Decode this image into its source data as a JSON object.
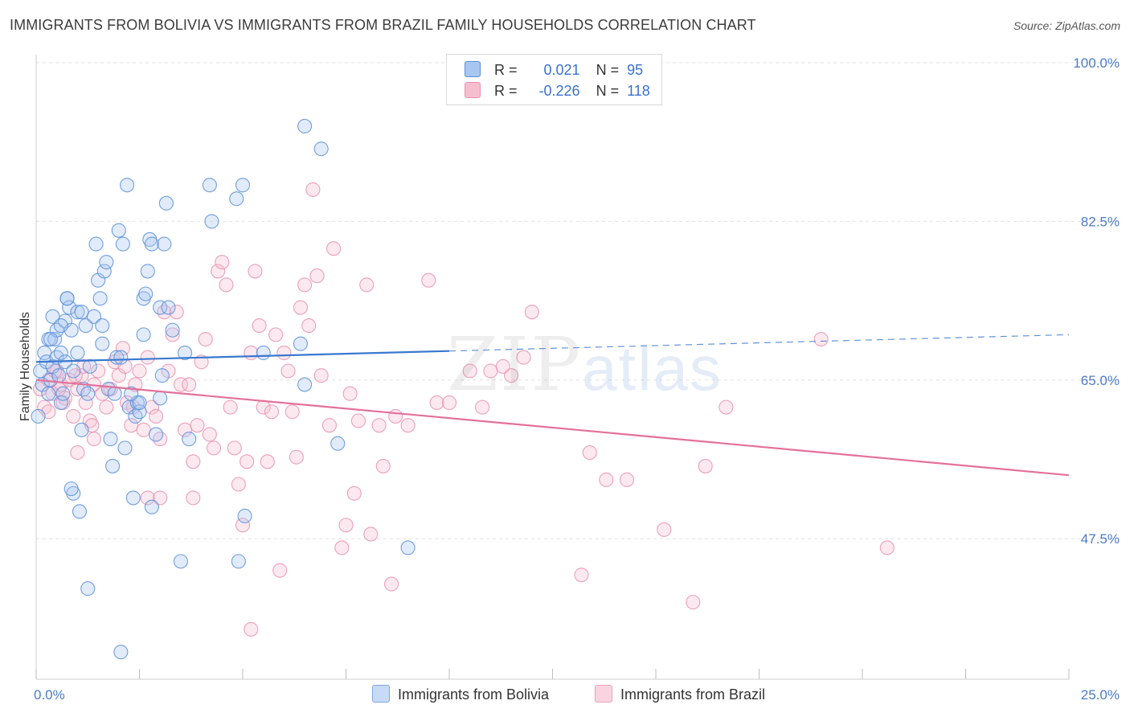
{
  "header": {
    "title": "IMMIGRANTS FROM BOLIVIA VS IMMIGRANTS FROM BRAZIL FAMILY HOUSEHOLDS CORRELATION CHART",
    "source": "Source: ZipAtlas.com"
  },
  "watermark": {
    "zip": "ZIP",
    "atlas": "atlas"
  },
  "legend": {
    "rows": [
      {
        "r_label": "R =",
        "r_value": "0.021",
        "n_label": "N =",
        "n_value": "95"
      },
      {
        "r_label": "R =",
        "r_value": "-0.226",
        "n_label": "N =",
        "n_value": "118"
      }
    ]
  },
  "bottom_legend": {
    "bolivia": "Immigrants from Bolivia",
    "brazil": "Immigrants from Brazil"
  },
  "colors": {
    "bolivia_fill": "#a9c6f0",
    "bolivia_stroke": "#5a8fd8",
    "bolivia_line": "#3a78d0",
    "brazil_fill": "#f6bfd0",
    "brazil_stroke": "#e890ae",
    "brazil_line": "#e4709a",
    "tick_text": "#4a7cc9",
    "grid": "#e2e2e2"
  },
  "chart_data": {
    "type": "scatter",
    "title": "IMMIGRANTS FROM BOLIVIA VS IMMIGRANTS FROM BRAZIL FAMILY HOUSEHOLDS CORRELATION CHART",
    "xlabel": "",
    "ylabel": "Family Households",
    "xlim": [
      0,
      25
    ],
    "ylim": [
      32,
      100
    ],
    "x_tick_labels": [
      "0.0%",
      "25.0%"
    ],
    "y_ticks": [
      47.5,
      65.0,
      82.5,
      100.0
    ],
    "y_tick_labels": [
      "47.5%",
      "65.0%",
      "82.5%",
      "100.0%"
    ],
    "grid": true,
    "legend_placement": "top-center",
    "series": [
      {
        "name": "Immigrants from Bolivia",
        "r": 0.021,
        "n": 95,
        "trend": {
          "x0": 0.0,
          "y0": 67.0,
          "x1": 25.0,
          "y1": 70.0,
          "solid_until": 10.0
        },
        "points": [
          [
            0.05,
            61.0
          ],
          [
            0.1,
            66.0
          ],
          [
            0.15,
            64.5
          ],
          [
            0.2,
            68.0
          ],
          [
            0.25,
            67.0
          ],
          [
            0.3,
            69.5
          ],
          [
            0.3,
            63.5
          ],
          [
            0.35,
            65.0
          ],
          [
            0.4,
            72.0
          ],
          [
            0.4,
            66.5
          ],
          [
            0.45,
            69.5
          ],
          [
            0.5,
            70.5
          ],
          [
            0.5,
            67.5
          ],
          [
            0.55,
            65.5
          ],
          [
            0.6,
            68.0
          ],
          [
            0.6,
            62.5
          ],
          [
            0.65,
            63.5
          ],
          [
            0.7,
            71.5
          ],
          [
            0.7,
            67.0
          ],
          [
            0.75,
            74.0
          ],
          [
            0.8,
            73.0
          ],
          [
            0.85,
            70.5
          ],
          [
            0.9,
            66.0
          ],
          [
            0.9,
            52.5
          ],
          [
            1.0,
            72.5
          ],
          [
            1.0,
            68.0
          ],
          [
            1.05,
            50.5
          ],
          [
            1.1,
            59.5
          ],
          [
            1.15,
            64.0
          ],
          [
            1.2,
            71.0
          ],
          [
            1.25,
            63.5
          ],
          [
            1.3,
            66.5
          ],
          [
            1.4,
            72.0
          ],
          [
            1.45,
            80.0
          ],
          [
            1.5,
            76.0
          ],
          [
            1.55,
            74.0
          ],
          [
            1.6,
            71.0
          ],
          [
            1.6,
            69.0
          ],
          [
            1.65,
            77.0
          ],
          [
            1.7,
            78.0
          ],
          [
            1.75,
            64.0
          ],
          [
            1.8,
            58.5
          ],
          [
            1.85,
            55.5
          ],
          [
            1.9,
            63.5
          ],
          [
            1.95,
            67.5
          ],
          [
            2.0,
            81.5
          ],
          [
            2.05,
            67.5
          ],
          [
            2.1,
            80.0
          ],
          [
            2.15,
            57.5
          ],
          [
            2.2,
            86.5
          ],
          [
            2.25,
            62.0
          ],
          [
            2.35,
            52.0
          ],
          [
            2.4,
            61.0
          ],
          [
            2.45,
            62.5
          ],
          [
            2.5,
            61.5
          ],
          [
            2.6,
            70.0
          ],
          [
            2.6,
            74.0
          ],
          [
            2.7,
            77.0
          ],
          [
            2.75,
            80.5
          ],
          [
            2.8,
            80.0
          ],
          [
            2.8,
            51.0
          ],
          [
            2.9,
            59.0
          ],
          [
            3.0,
            73.0
          ],
          [
            3.05,
            65.5
          ],
          [
            3.1,
            80.0
          ],
          [
            3.15,
            84.5
          ],
          [
            3.2,
            73.0
          ],
          [
            3.3,
            70.5
          ],
          [
            3.5,
            45.0
          ],
          [
            3.6,
            68.0
          ],
          [
            3.7,
            58.5
          ],
          [
            4.2,
            86.5
          ],
          [
            4.25,
            82.5
          ],
          [
            4.85,
            85.0
          ],
          [
            4.9,
            45.0
          ],
          [
            5.0,
            86.5
          ],
          [
            5.05,
            50.0
          ],
          [
            5.5,
            68.0
          ],
          [
            6.4,
            69.0
          ],
          [
            6.5,
            64.5
          ],
          [
            6.5,
            93.0
          ],
          [
            6.9,
            90.5
          ],
          [
            7.3,
            58.0
          ],
          [
            9.0,
            46.5
          ],
          [
            1.25,
            42.0
          ],
          [
            2.05,
            35.0
          ],
          [
            0.85,
            53.0
          ],
          [
            0.6,
            71.0
          ],
          [
            0.35,
            69.5
          ],
          [
            0.75,
            74.0
          ],
          [
            2.5,
            62.5
          ],
          [
            3.0,
            63.0
          ],
          [
            2.3,
            63.5
          ],
          [
            1.1,
            72.5
          ],
          [
            2.65,
            74.5
          ]
        ]
      },
      {
        "name": "Immigrants from Brazil",
        "r": -0.226,
        "n": 118,
        "trend": {
          "x0": 0.0,
          "y0": 65.0,
          "x1": 25.0,
          "y1": 54.5
        },
        "points": [
          [
            0.1,
            64.0
          ],
          [
            0.2,
            62.0
          ],
          [
            0.3,
            65.0
          ],
          [
            0.4,
            63.5
          ],
          [
            0.5,
            66.0
          ],
          [
            0.6,
            64.5
          ],
          [
            0.7,
            63.0
          ],
          [
            0.8,
            65.0
          ],
          [
            0.9,
            61.0
          ],
          [
            1.0,
            64.0
          ],
          [
            1.1,
            65.5
          ],
          [
            1.2,
            62.5
          ],
          [
            1.3,
            60.5
          ],
          [
            1.4,
            64.5
          ],
          [
            1.5,
            66.0
          ],
          [
            1.6,
            63.5
          ],
          [
            1.7,
            62.0
          ],
          [
            1.8,
            64.0
          ],
          [
            1.9,
            67.0
          ],
          [
            2.0,
            65.5
          ],
          [
            2.1,
            68.5
          ],
          [
            2.2,
            62.5
          ],
          [
            2.3,
            60.0
          ],
          [
            2.4,
            64.5
          ],
          [
            2.5,
            66.0
          ],
          [
            2.6,
            59.5
          ],
          [
            2.7,
            67.5
          ],
          [
            2.8,
            62.0
          ],
          [
            2.9,
            61.0
          ],
          [
            3.0,
            58.5
          ],
          [
            3.1,
            72.5
          ],
          [
            3.2,
            66.0
          ],
          [
            3.3,
            70.0
          ],
          [
            3.4,
            72.5
          ],
          [
            3.5,
            64.5
          ],
          [
            3.6,
            59.5
          ],
          [
            3.7,
            64.5
          ],
          [
            3.8,
            56.0
          ],
          [
            3.9,
            60.0
          ],
          [
            4.0,
            67.0
          ],
          [
            4.1,
            69.5
          ],
          [
            4.2,
            59.0
          ],
          [
            4.3,
            57.5
          ],
          [
            4.4,
            77.0
          ],
          [
            4.5,
            78.0
          ],
          [
            4.6,
            75.5
          ],
          [
            4.7,
            62.0
          ],
          [
            4.8,
            57.5
          ],
          [
            4.9,
            53.5
          ],
          [
            5.0,
            49.0
          ],
          [
            5.1,
            56.0
          ],
          [
            5.2,
            68.0
          ],
          [
            5.3,
            77.0
          ],
          [
            5.4,
            71.0
          ],
          [
            5.5,
            62.0
          ],
          [
            5.6,
            56.0
          ],
          [
            5.7,
            61.5
          ],
          [
            5.8,
            70.0
          ],
          [
            5.9,
            44.0
          ],
          [
            6.0,
            68.0
          ],
          [
            6.1,
            66.0
          ],
          [
            6.2,
            61.5
          ],
          [
            6.3,
            56.5
          ],
          [
            6.4,
            73.0
          ],
          [
            6.5,
            75.5
          ],
          [
            6.6,
            71.0
          ],
          [
            6.7,
            86.0
          ],
          [
            6.8,
            76.5
          ],
          [
            6.9,
            65.5
          ],
          [
            7.1,
            60.0
          ],
          [
            7.2,
            79.5
          ],
          [
            7.4,
            46.5
          ],
          [
            7.5,
            49.0
          ],
          [
            7.6,
            63.5
          ],
          [
            7.7,
            52.5
          ],
          [
            7.8,
            60.5
          ],
          [
            8.0,
            75.5
          ],
          [
            8.1,
            48.0
          ],
          [
            8.3,
            60.0
          ],
          [
            8.4,
            55.5
          ],
          [
            8.6,
            42.5
          ],
          [
            8.7,
            61.0
          ],
          [
            9.0,
            60.0
          ],
          [
            9.5,
            76.0
          ],
          [
            9.7,
            62.5
          ],
          [
            10.0,
            62.5
          ],
          [
            10.5,
            66.0
          ],
          [
            10.8,
            62.0
          ],
          [
            11.0,
            66.0
          ],
          [
            11.3,
            66.5
          ],
          [
            11.5,
            65.5
          ],
          [
            11.8,
            67.5
          ],
          [
            12.0,
            72.5
          ],
          [
            13.2,
            43.5
          ],
          [
            13.4,
            57.0
          ],
          [
            13.8,
            54.0
          ],
          [
            14.3,
            54.0
          ],
          [
            15.2,
            48.5
          ],
          [
            15.9,
            40.5
          ],
          [
            16.2,
            55.5
          ],
          [
            16.7,
            62.0
          ],
          [
            19.0,
            69.5
          ],
          [
            20.6,
            46.5
          ],
          [
            1.0,
            57.0
          ],
          [
            1.4,
            58.5
          ],
          [
            2.7,
            52.0
          ],
          [
            3.0,
            52.0
          ],
          [
            3.8,
            52.0
          ],
          [
            5.2,
            37.5
          ],
          [
            0.3,
            61.5
          ],
          [
            0.45,
            66.0
          ],
          [
            0.55,
            64.0
          ],
          [
            0.65,
            62.5
          ],
          [
            0.95,
            65.5
          ],
          [
            1.15,
            66.5
          ],
          [
            1.35,
            60.0
          ],
          [
            2.15,
            66.5
          ],
          [
            2.35,
            62.0
          ]
        ]
      }
    ]
  }
}
